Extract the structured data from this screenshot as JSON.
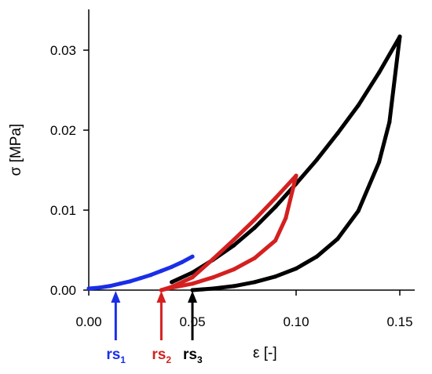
{
  "chart_data": {
    "type": "line",
    "xlabel": "ε [-]",
    "ylabel": "σ [MPa]",
    "xlim": [
      0.0,
      0.16
    ],
    "ylim": [
      0.0,
      0.033
    ],
    "x_ticks": [
      0.0,
      0.05,
      0.1,
      0.15
    ],
    "x_tick_labels": [
      "0.00",
      "0.05",
      "0.10",
      "0.15"
    ],
    "y_ticks": [
      0.0,
      0.01,
      0.02,
      0.03
    ],
    "y_tick_labels": [
      "0.00",
      "0.01",
      "0.02",
      "0.03"
    ],
    "grid": false,
    "series": [
      {
        "color": "#000000",
        "x": [
          0.05,
          0.055,
          0.06,
          0.07,
          0.08,
          0.09,
          0.1,
          0.11,
          0.12,
          0.13,
          0.14,
          0.145,
          0.15
        ],
        "y": [
          0.0,
          0.0001,
          0.0002,
          0.0005,
          0.001,
          0.0017,
          0.0027,
          0.0042,
          0.0064,
          0.0099,
          0.016,
          0.021,
          0.0317
        ]
      },
      {
        "color": "#000000",
        "x": [
          0.04,
          0.05,
          0.06,
          0.07,
          0.08,
          0.09,
          0.1,
          0.11,
          0.12,
          0.13,
          0.14,
          0.15
        ],
        "y": [
          0.001,
          0.0022,
          0.0038,
          0.0056,
          0.0078,
          0.0104,
          0.0133,
          0.0163,
          0.0196,
          0.0231,
          0.0272,
          0.0317
        ]
      },
      {
        "color": "#d42020",
        "x": [
          0.035,
          0.04,
          0.05,
          0.06,
          0.07,
          0.08,
          0.09,
          0.095,
          0.1
        ],
        "y": [
          0.0,
          0.0003,
          0.0008,
          0.0016,
          0.0026,
          0.004,
          0.0062,
          0.009,
          0.0143
        ]
      },
      {
        "color": "#d42020",
        "x": [
          0.035,
          0.04,
          0.05,
          0.06,
          0.07,
          0.08,
          0.09,
          0.1
        ],
        "y": [
          0.0,
          0.0004,
          0.0016,
          0.0039,
          0.0063,
          0.0088,
          0.0115,
          0.0143
        ]
      },
      {
        "color": "#1a2ee8",
        "x": [
          0.0,
          0.005,
          0.01,
          0.015,
          0.02,
          0.025,
          0.03,
          0.035,
          0.04,
          0.045,
          0.05
        ],
        "y": [
          0.0002,
          0.0003,
          0.0005,
          0.0008,
          0.0011,
          0.0015,
          0.0019,
          0.0024,
          0.0029,
          0.0035,
          0.0042
        ]
      }
    ],
    "annotations": [
      {
        "label": "rs",
        "sub": "1",
        "x": 0.013,
        "color": "#1a2ee8"
      },
      {
        "label": "rs",
        "sub": "2",
        "x": 0.035,
        "color": "#d42020"
      },
      {
        "label": "rs",
        "sub": "3",
        "x": 0.05,
        "color": "#000000"
      }
    ]
  }
}
